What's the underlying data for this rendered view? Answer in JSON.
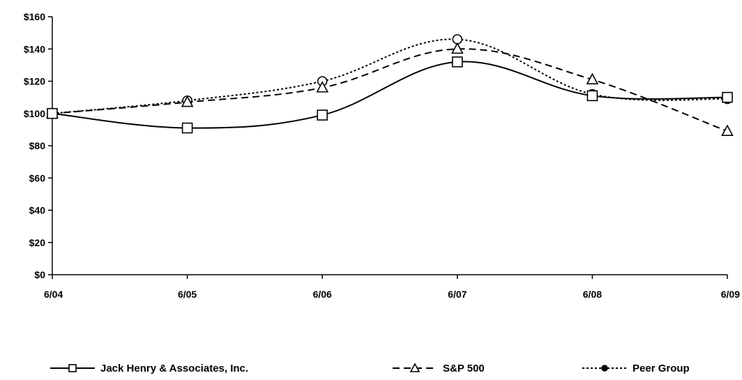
{
  "chart_data": {
    "type": "line",
    "title": "",
    "xlabel": "",
    "ylabel": "",
    "categories": [
      "6/04",
      "6/05",
      "6/06",
      "6/07",
      "6/08",
      "6/09"
    ],
    "y_ticks": [
      "$0",
      "$20",
      "$40",
      "$60",
      "$80",
      "$100",
      "$120",
      "$140",
      "$160"
    ],
    "ylim": [
      0,
      160
    ],
    "grid": false,
    "legend_position": "bottom",
    "series": [
      {
        "name": "Jack Henry & Associates, Inc.",
        "values": [
          100,
          91,
          99,
          132,
          111,
          110
        ],
        "marker": "square",
        "dash": "solid",
        "color": "#000000"
      },
      {
        "name": "S&P 500",
        "values": [
          100,
          107,
          116,
          140,
          121,
          89
        ],
        "marker": "triangle",
        "dash": "dashed",
        "color": "#000000"
      },
      {
        "name": "Peer Group",
        "values": [
          100,
          108,
          120,
          146,
          112,
          109
        ],
        "marker": "circle",
        "dash": "dotted",
        "color": "#000000"
      }
    ]
  }
}
